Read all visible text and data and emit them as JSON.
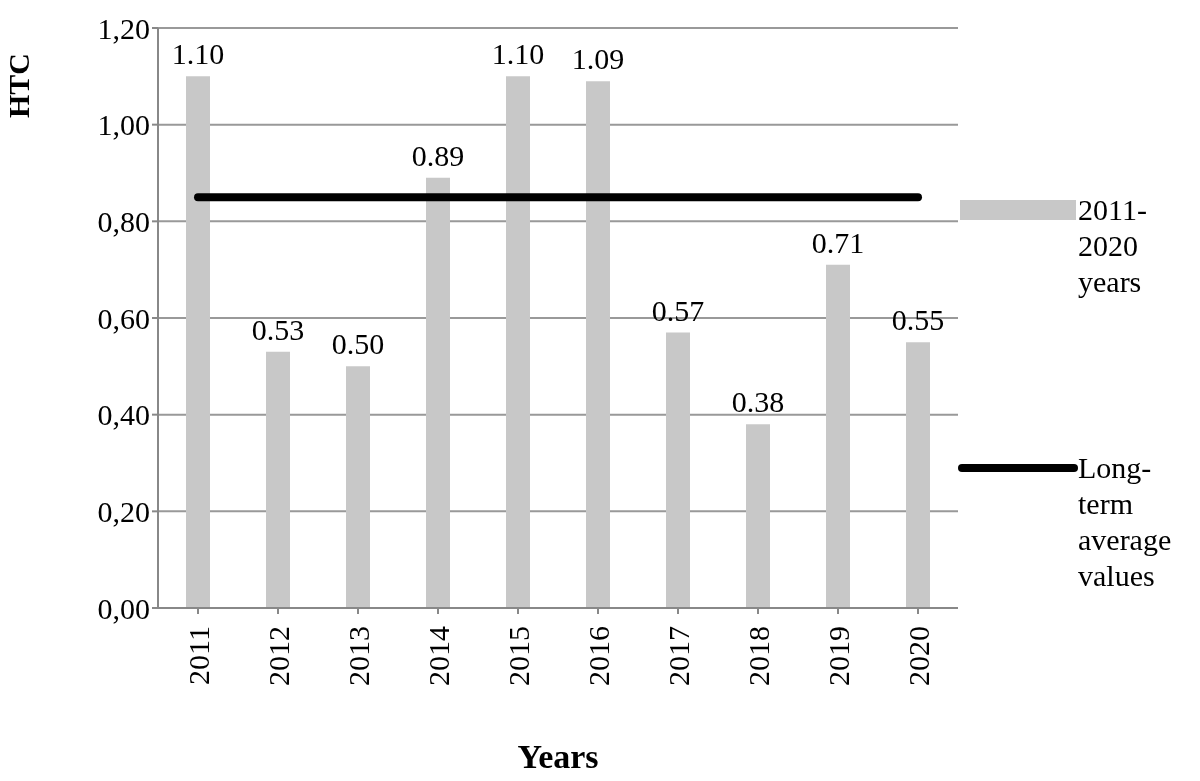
{
  "chart_data": {
    "type": "bar",
    "categories": [
      "2011",
      "2012",
      "2013",
      "2014",
      "2015",
      "2016",
      "2017",
      "2018",
      "2019",
      "2020"
    ],
    "series": [
      {
        "name": "2011-2020 years",
        "color": "#c8c8c8",
        "values": [
          1.1,
          0.53,
          0.5,
          0.89,
          1.1,
          1.09,
          0.57,
          0.38,
          0.71,
          0.55
        ],
        "value_labels": [
          "1.10",
          "0.53",
          "0.50",
          "0.89",
          "1.10",
          "1.09",
          "0.57",
          "0.38",
          "0.71",
          "0.55"
        ]
      },
      {
        "type": "line",
        "name": "Long-term average values",
        "color": "#000000",
        "values": [
          0.85,
          0.85,
          0.85,
          0.85,
          0.85,
          0.85,
          0.85,
          0.85,
          0.85,
          0.85
        ]
      }
    ],
    "xlabel": "Years",
    "ylabel": "HTC",
    "ylim": [
      0,
      1.2
    ],
    "yticks": [
      {
        "value": 0,
        "label": "0,00"
      },
      {
        "value": 0.2,
        "label": "0,20"
      },
      {
        "value": 0.4,
        "label": "0,40"
      },
      {
        "value": 0.6,
        "label": "0,60"
      },
      {
        "value": 0.8,
        "label": "0,80"
      },
      {
        "value": 1.0,
        "label": "1,00"
      },
      {
        "value": 1.2,
        "label": "1,20"
      }
    ],
    "grid": "y",
    "legend": "right",
    "marker": "none",
    "line_style": "solid"
  }
}
